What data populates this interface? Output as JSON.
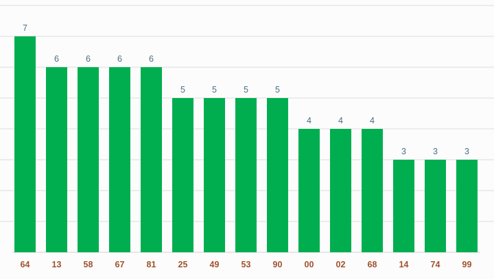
{
  "chart_data": {
    "type": "bar",
    "categories": [
      "64",
      "13",
      "58",
      "67",
      "81",
      "25",
      "49",
      "53",
      "90",
      "00",
      "02",
      "68",
      "14",
      "74",
      "99"
    ],
    "values": [
      7,
      6,
      6,
      6,
      6,
      5,
      5,
      5,
      5,
      4,
      4,
      4,
      3,
      3,
      3
    ],
    "title": "",
    "xlabel": "",
    "ylabel": "",
    "ylim": [
      0,
      8
    ],
    "grid": true,
    "data_labels": true,
    "colors": {
      "bar": "#00ae4f",
      "value_label": "#4a6f86",
      "tick_label": "#a0522d",
      "background": "#fcfcfc"
    }
  }
}
